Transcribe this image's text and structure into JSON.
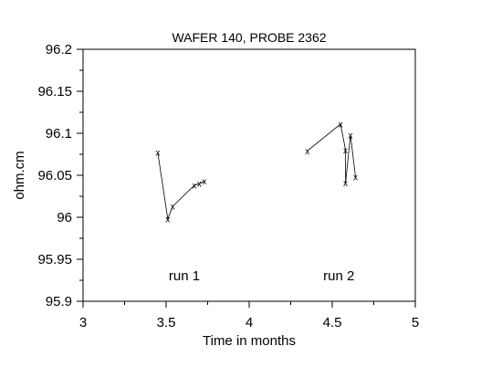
{
  "chart_data": {
    "type": "line",
    "title": "WAFER 140, PROBE 2362",
    "xlabel": "Time in months",
    "ylabel": "ohm.cm",
    "xlim": [
      3,
      5
    ],
    "ylim": [
      95.9,
      96.2
    ],
    "xticks": [
      3,
      3.5,
      4,
      4.5,
      5
    ],
    "xtick_labels": [
      "3",
      "3.5",
      "4",
      "4.5",
      "5"
    ],
    "yticks": [
      95.9,
      95.95,
      96,
      96.05,
      96.1,
      96.15,
      96.2
    ],
    "ytick_labels": [
      "95.9",
      "95.95",
      "96",
      "96.05",
      "96.1",
      "96.15",
      "96.2"
    ],
    "grid": false,
    "marker": "x",
    "series": [
      {
        "x": [
          3.45,
          3.51,
          3.54,
          3.67,
          3.7,
          3.73
        ],
        "y": [
          96.077,
          95.998,
          96.013,
          96.038,
          96.04,
          96.043
        ]
      },
      {
        "x": [
          4.35,
          4.55,
          4.58,
          4.58,
          4.61,
          4.64
        ],
        "y": [
          96.079,
          96.111,
          96.08,
          96.041,
          96.098,
          96.048
        ]
      }
    ],
    "annotations": [
      {
        "text": "run 1",
        "x": 3.61,
        "y": 95.925
      },
      {
        "text": "run 2",
        "x": 4.54,
        "y": 95.925
      }
    ]
  }
}
